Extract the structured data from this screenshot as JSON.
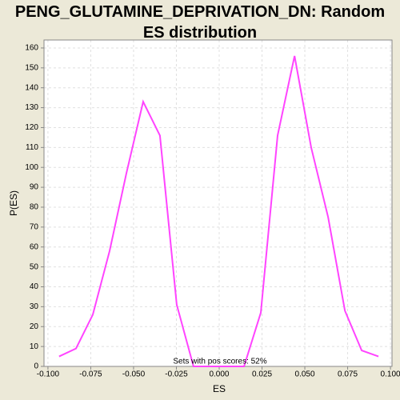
{
  "chart_data": {
    "type": "line",
    "title": "PENG_GLUTAMINE_DEPRIVATION_DN: Random ES distribution",
    "xlabel": "ES",
    "ylabel": "P(ES)",
    "annotation": "Sets with pos scores: 52%",
    "x": [
      -0.0935,
      -0.0836,
      -0.0738,
      -0.064,
      -0.0542,
      -0.0444,
      -0.0346,
      -0.0248,
      -0.015,
      -0.0051,
      0.0047,
      0.0145,
      0.0243,
      0.0341,
      0.044,
      0.0537,
      0.0636,
      0.0734,
      0.0832,
      0.093
    ],
    "series": [
      {
        "color": "#ff44ff",
        "values": [
          5,
          9,
          26,
          58,
          97,
          133,
          116,
          31,
          0,
          0,
          0,
          0,
          27,
          116,
          156,
          110,
          75,
          28,
          8,
          5
        ]
      }
    ],
    "xlim": [
      -0.1023,
      0.1009
    ],
    "ylim": [
      0,
      164
    ],
    "xticks": [
      {
        "value": -0.1,
        "label": "-0.100"
      },
      {
        "value": -0.075,
        "label": "-0.075"
      },
      {
        "value": -0.05,
        "label": "-0.050"
      },
      {
        "value": -0.025,
        "label": "-0.025"
      },
      {
        "value": 0,
        "label": "0.000"
      },
      {
        "value": 0.025,
        "label": "0.025"
      },
      {
        "value": 0.05,
        "label": "0.050"
      },
      {
        "value": 0.075,
        "label": "0.075"
      },
      {
        "value": 0.1,
        "label": "0.100"
      }
    ],
    "yticks": [
      0,
      10,
      20,
      30,
      40,
      50,
      60,
      70,
      80,
      90,
      100,
      110,
      120,
      130,
      140,
      150,
      160
    ],
    "grid": true
  }
}
